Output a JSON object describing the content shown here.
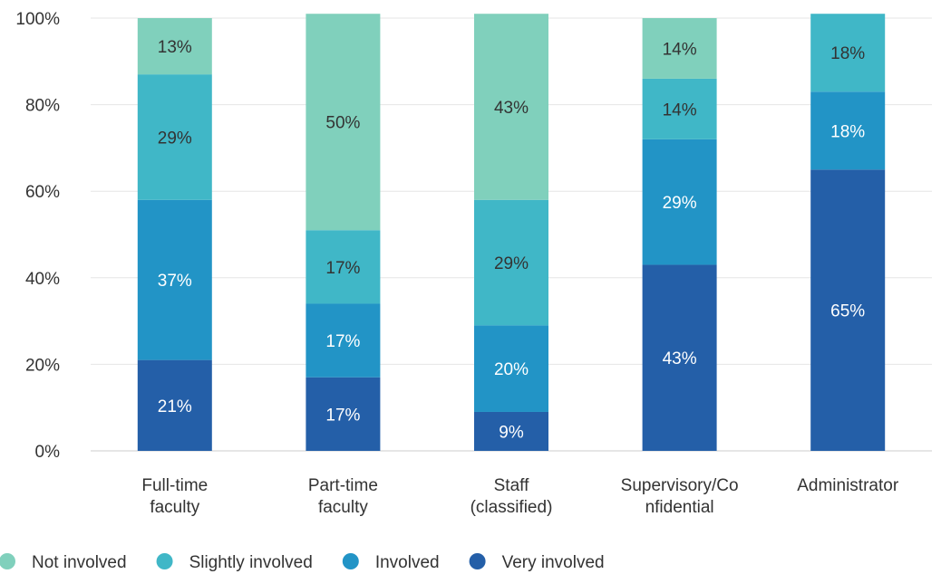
{
  "chart_data": {
    "type": "bar",
    "stacked": true,
    "normalized": true,
    "title": "",
    "xlabel": "",
    "ylabel": "",
    "ylim": [
      0,
      100
    ],
    "y_ticks": [
      "0%",
      "20%",
      "40%",
      "60%",
      "80%",
      "100%"
    ],
    "grid": true,
    "legend_position": "bottom-left",
    "categories": [
      [
        "Full-time",
        "faculty"
      ],
      [
        "Part-time",
        "faculty"
      ],
      [
        "Staff",
        "(classified)"
      ],
      [
        "Supervisory/Co",
        "nfidential"
      ],
      [
        "Administrator"
      ]
    ],
    "series": [
      {
        "name": "Very involved",
        "color": "#245fa8",
        "values": [
          21,
          17,
          9,
          43,
          65
        ],
        "labels": [
          "21%",
          "17%",
          "9%",
          "43%",
          "65%"
        ],
        "label_color": "#ffffff"
      },
      {
        "name": "Involved",
        "color": "#2294c6",
        "values": [
          37,
          17,
          20,
          29,
          18
        ],
        "labels": [
          "37%",
          "17%",
          "20%",
          "29%",
          "18%"
        ],
        "label_color": "#ffffff"
      },
      {
        "name": "Slightly involved",
        "color": "#40b7c7",
        "values": [
          29,
          17,
          29,
          14,
          18
        ],
        "labels": [
          "29%",
          "17%",
          "29%",
          "14%",
          "18%"
        ],
        "label_color": "#333333"
      },
      {
        "name": "Not involved",
        "color": "#80d0bc",
        "values": [
          13,
          50,
          43,
          14,
          0
        ],
        "labels": [
          "13%",
          "50%",
          "43%",
          "14%",
          ""
        ],
        "label_color": "#333333"
      }
    ],
    "legend": [
      {
        "name": "Not involved",
        "color": "#80d0bc"
      },
      {
        "name": "Slightly involved",
        "color": "#40b7c7"
      },
      {
        "name": "Involved",
        "color": "#2294c6"
      },
      {
        "name": "Very involved",
        "color": "#245fa8"
      }
    ]
  }
}
